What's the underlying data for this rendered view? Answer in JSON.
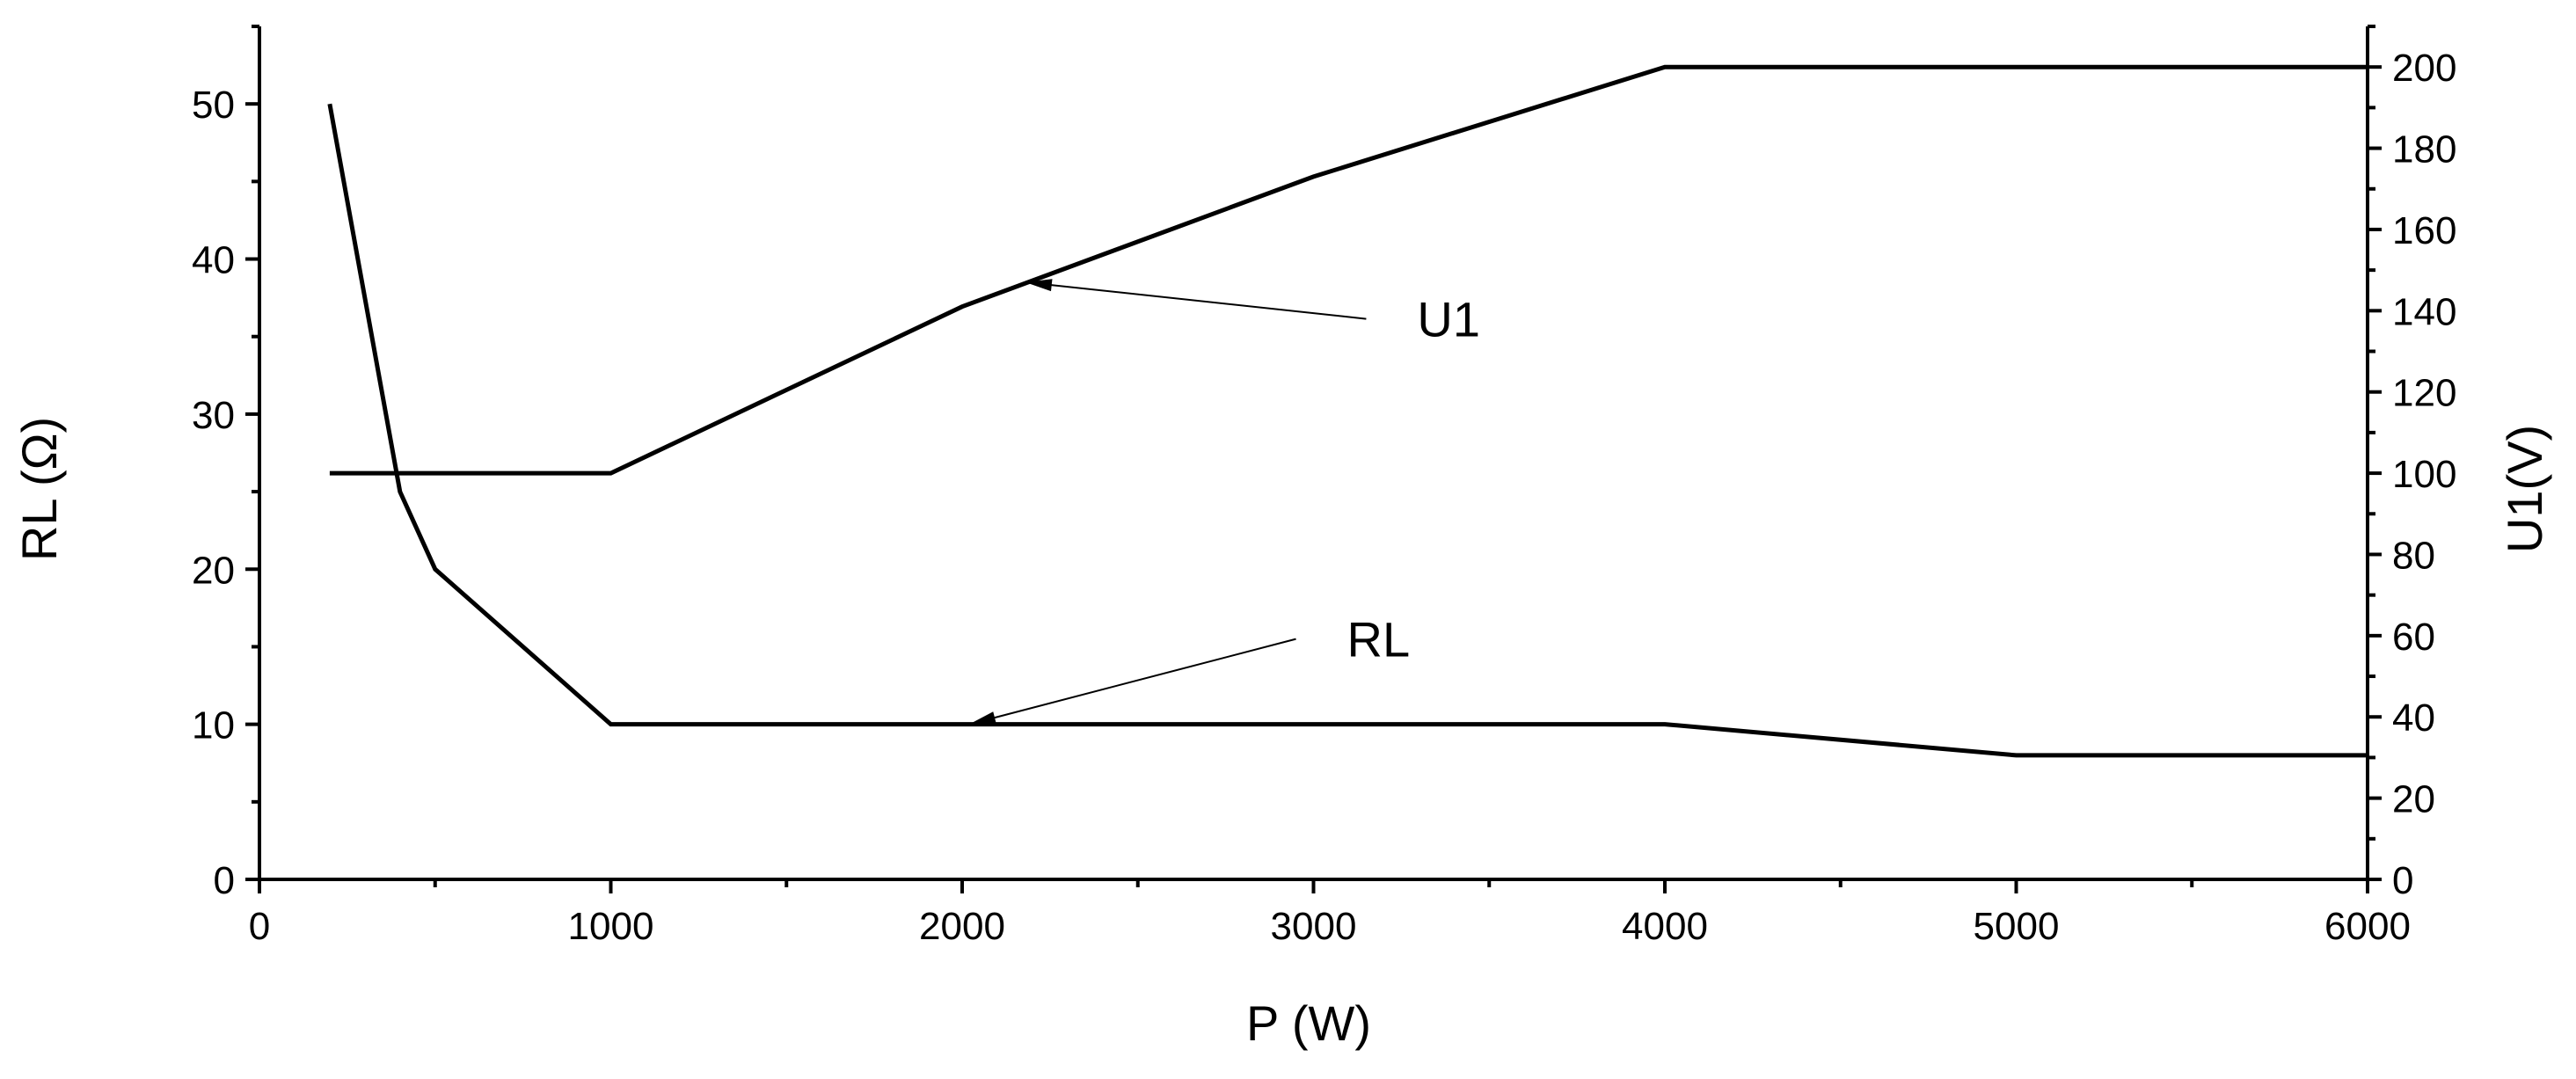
{
  "chart_data": {
    "type": "line",
    "x_axis": {
      "label": "P (W)",
      "range": [
        0,
        6000
      ],
      "ticks": [
        0,
        1000,
        2000,
        3000,
        4000,
        5000,
        6000
      ],
      "tick_labels": [
        "0",
        "1000",
        "2000",
        "3000",
        "4000",
        "5000",
        "6000"
      ]
    },
    "y_axis_left": {
      "label": "RL (Ω)",
      "range": [
        0,
        55
      ],
      "ticks": [
        0,
        10,
        20,
        30,
        40,
        50
      ],
      "tick_labels": [
        "0",
        "10",
        "20",
        "30",
        "40",
        "50"
      ]
    },
    "y_axis_right": {
      "label": "U1(V)",
      "range": [
        0,
        210
      ],
      "ticks": [
        0,
        20,
        40,
        60,
        80,
        100,
        120,
        140,
        160,
        180,
        200
      ],
      "tick_labels": [
        "0",
        "20",
        "40",
        "60",
        "80",
        "100",
        "120",
        "140",
        "160",
        "180",
        "200"
      ]
    },
    "series": [
      {
        "name": "RL",
        "axis": "left",
        "x": [
          200,
          400,
          500,
          1000,
          2000,
          3000,
          4000,
          5000,
          6000
        ],
        "y": [
          50,
          25,
          20,
          10,
          10,
          10,
          10,
          8,
          8
        ],
        "annotation": {
          "text": "RL",
          "point": [
            2020,
            10
          ],
          "text_at": [
            2950,
            15.5
          ]
        }
      },
      {
        "name": "U1",
        "axis": "right",
        "x": [
          200,
          1000,
          2000,
          3000,
          4000,
          5000,
          6000
        ],
        "y": [
          100,
          100,
          141,
          173,
          200,
          200,
          200
        ],
        "annotation": {
          "text": "U1",
          "point": [
            2180,
            147
          ],
          "text_at": [
            3150,
            138
          ]
        }
      }
    ],
    "grid": false,
    "legend": "none"
  }
}
